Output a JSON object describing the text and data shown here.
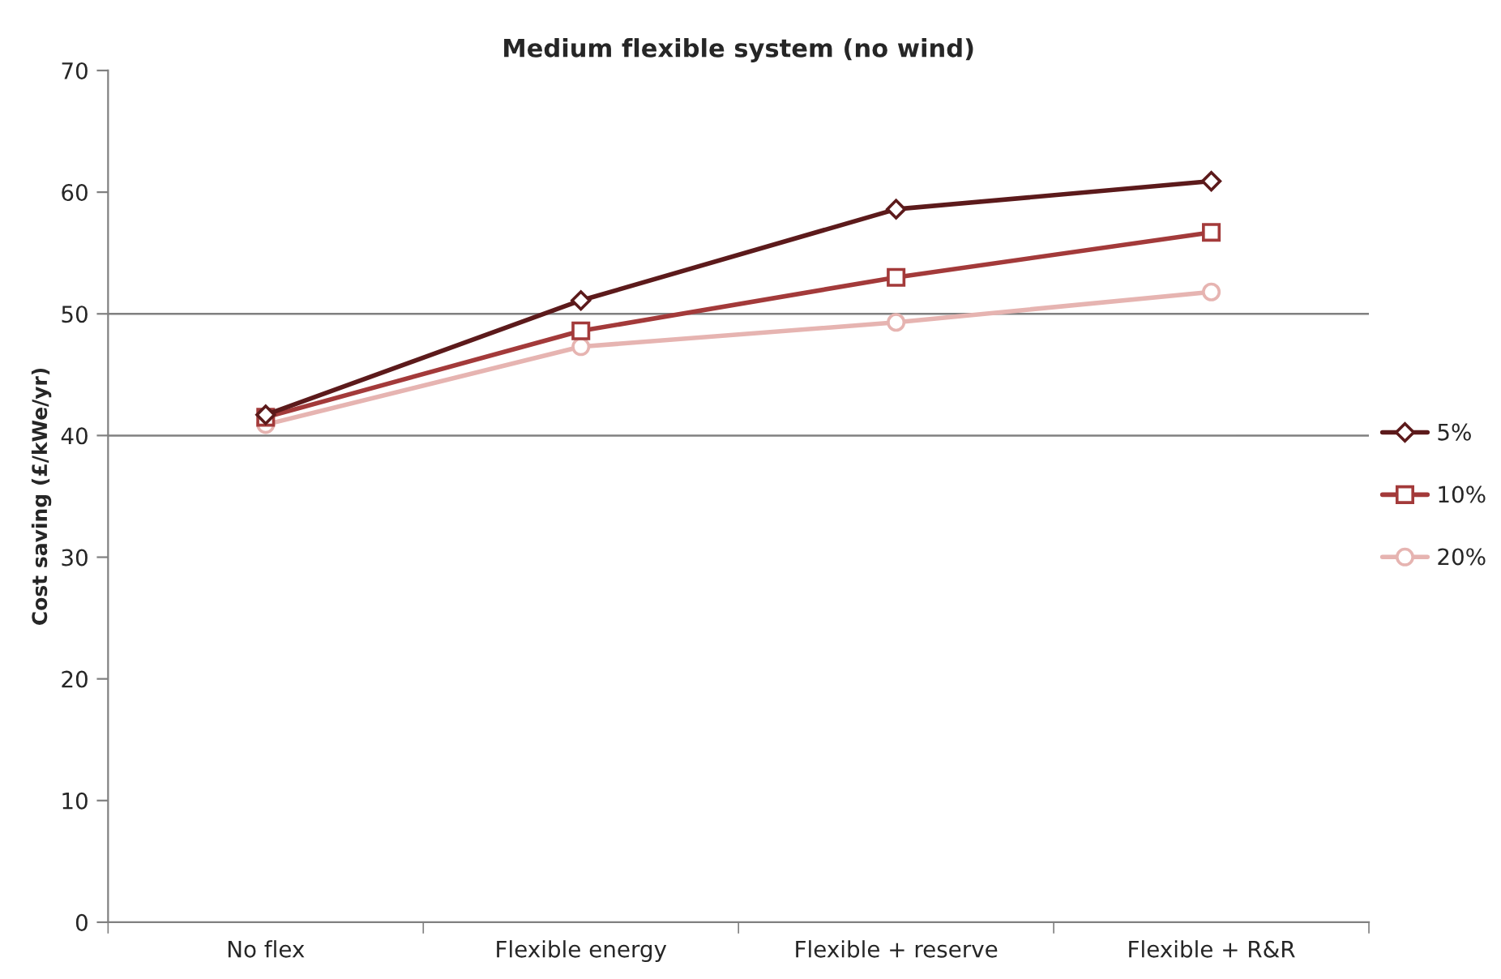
{
  "chart_data": {
    "type": "line",
    "title": "Medium flexible system (no wind)",
    "ylabel": "Cost saving (£/kWe/yr)",
    "categories": [
      "No flex",
      "Flexible energy",
      "Flexible + reserve",
      "Flexible + R&R"
    ],
    "series": [
      {
        "name": "5%",
        "color": "#5c1a1b",
        "marker": "diamond",
        "values": [
          41.7,
          51.1,
          58.6,
          60.9
        ]
      },
      {
        "name": "10%",
        "color": "#a33a3a",
        "marker": "square",
        "values": [
          41.5,
          48.6,
          53.0,
          56.7
        ]
      },
      {
        "name": "20%",
        "color": "#e6b4b1",
        "marker": "circle",
        "values": [
          40.9,
          47.3,
          49.3,
          51.8
        ]
      }
    ],
    "ylim": [
      0,
      70
    ],
    "yticks": [
      0,
      10,
      20,
      30,
      40,
      50,
      60,
      70
    ],
    "grid": false,
    "legend": "right",
    "ref_lines": [
      {
        "axis": "y",
        "value": 40,
        "color": "#808080"
      },
      {
        "axis": "y",
        "value": 50,
        "color": "#808080"
      }
    ]
  }
}
